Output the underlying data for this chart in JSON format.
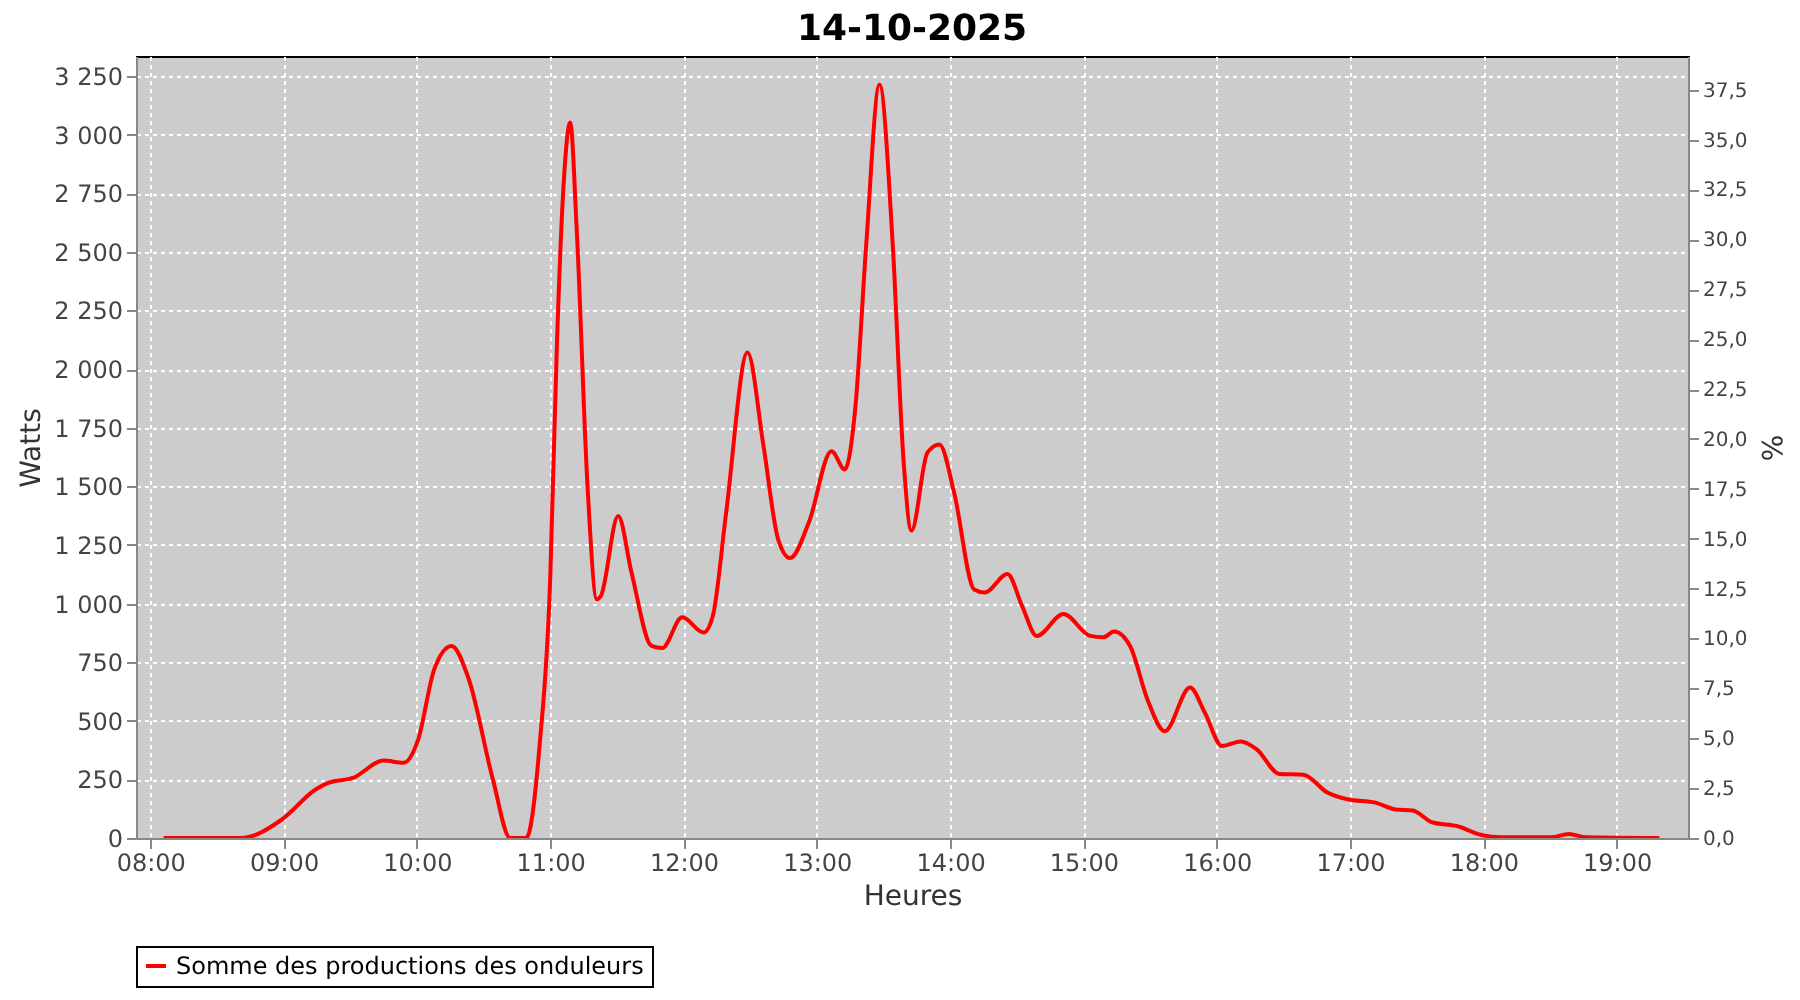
{
  "chart_data": {
    "type": "line",
    "title": "14-10-2025",
    "xlabel": "Heures",
    "ylabel": "Watts",
    "y2label": "%",
    "xlim": [
      7.893,
      19.535
    ],
    "xticks": [
      {
        "value": 8,
        "label": "08:00"
      },
      {
        "value": 9,
        "label": "09:00"
      },
      {
        "value": 10,
        "label": "10:00"
      },
      {
        "value": 11,
        "label": "11:00"
      },
      {
        "value": 12,
        "label": "12:00"
      },
      {
        "value": 13,
        "label": "13:00"
      },
      {
        "value": 14,
        "label": "14:00"
      },
      {
        "value": 15,
        "label": "15:00"
      },
      {
        "value": 16,
        "label": "16:00"
      },
      {
        "value": 17,
        "label": "17:00"
      },
      {
        "value": 18,
        "label": "18:00"
      },
      {
        "value": 19,
        "label": "19:00"
      }
    ],
    "ylim": [
      0,
      3335
    ],
    "yticks": [
      0,
      250,
      500,
      750,
      {
        "value": 1000,
        "label": "1 000"
      },
      {
        "value": 1250,
        "label": "1 250"
      },
      {
        "value": 1500,
        "label": "1 500"
      },
      {
        "value": 1750,
        "label": "1 750"
      },
      {
        "value": 2000,
        "label": "2 000"
      },
      {
        "value": 2250,
        "label": "2 250"
      },
      {
        "value": 2500,
        "label": "2 500"
      },
      {
        "value": 2750,
        "label": "2 750"
      },
      {
        "value": 3000,
        "label": "3 000"
      },
      {
        "value": 3250,
        "label": "3 250"
      }
    ],
    "y2lim": [
      0,
      39.19
    ],
    "y2ticks": [
      {
        "value": 0,
        "label": "0,0"
      },
      {
        "value": 2.5,
        "label": "2,5"
      },
      {
        "value": 5,
        "label": "5,0"
      },
      {
        "value": 7.5,
        "label": "7,5"
      },
      {
        "value": 10,
        "label": "10,0"
      },
      {
        "value": 12.5,
        "label": "12,5"
      },
      {
        "value": 15,
        "label": "15,0"
      },
      {
        "value": 17.5,
        "label": "17,5"
      },
      {
        "value": 20,
        "label": "20,0"
      },
      {
        "value": 22.5,
        "label": "22,5"
      },
      {
        "value": 25,
        "label": "25,0"
      },
      {
        "value": 27.5,
        "label": "27,5"
      },
      {
        "value": 30,
        "label": "30,0"
      },
      {
        "value": 32.5,
        "label": "32,5"
      },
      {
        "value": 35,
        "label": "35,0"
      },
      {
        "value": 37.5,
        "label": "37,5"
      }
    ],
    "grid": true,
    "legend": "bottom",
    "marker": "none",
    "line_style": "solid",
    "x": [
      8.1,
      8.68,
      8.99,
      9.24,
      9.34,
      9.52,
      9.75,
      9.9,
      10.01,
      10.13,
      10.26,
      10.39,
      10.57,
      10.7,
      10.82,
      10.92,
      11.0,
      11.05,
      11.1,
      11.15,
      11.2,
      11.28,
      11.35,
      11.38,
      11.51,
      11.61,
      11.76,
      11.84,
      11.99,
      12.15,
      12.22,
      12.32,
      12.48,
      12.6,
      12.71,
      12.8,
      12.94,
      13.11,
      13.21,
      13.29,
      13.37,
      13.47,
      13.57,
      13.65,
      13.71,
      13.83,
      13.92,
      14.03,
      14.18,
      14.26,
      14.43,
      14.54,
      14.65,
      14.85,
      15.05,
      15.15,
      15.23,
      15.35,
      15.48,
      15.61,
      15.8,
      15.91,
      16.04,
      16.18,
      16.3,
      16.47,
      16.65,
      16.83,
      16.98,
      17.19,
      17.34,
      17.47,
      17.62,
      17.8,
      17.98,
      18.13,
      18.51,
      18.64,
      18.77,
      19.32
    ],
    "series": [
      {
        "name": "Somme des productions des onduleurs",
        "color": "#ff0000",
        "values": [
          0,
          0,
          80,
          207,
          236,
          256,
          330,
          321,
          421,
          719,
          819,
          676,
          250,
          0,
          0,
          392,
          1103,
          2098,
          2781,
          3051,
          2582,
          1501,
          1018,
          1032,
          1373,
          1132,
          819,
          810,
          941,
          876,
          947,
          1388,
          2070,
          1672,
          1274,
          1194,
          1345,
          1649,
          1572,
          1842,
          2525,
          3213,
          2525,
          1615,
          1311,
          1644,
          1678,
          1473,
          1060,
          1047,
          1126,
          989,
          862,
          955,
          862,
          856,
          881,
          819,
          591,
          455,
          642,
          535,
          392,
          412,
          378,
          273,
          270,
          194,
          165,
          151,
          122,
          117,
          66,
          51,
          14,
          3,
          3,
          17,
          3,
          0
        ]
      }
    ]
  }
}
